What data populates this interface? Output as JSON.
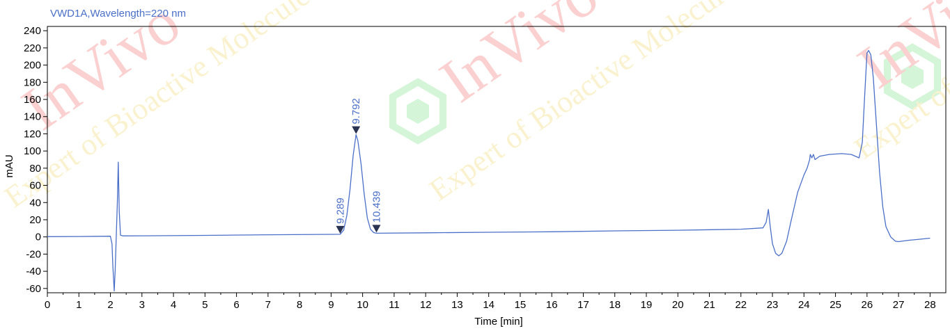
{
  "chart_data": {
    "type": "line",
    "title": "VWD1A,Wavelength=220 nm",
    "xlabel": "Time [min]",
    "ylabel": "mAU",
    "xlim": [
      0,
      28.5
    ],
    "ylim": [
      -65,
      245
    ],
    "x_ticks": [
      0,
      1,
      2,
      3,
      4,
      5,
      6,
      7,
      8,
      9,
      10,
      11,
      12,
      13,
      14,
      15,
      16,
      17,
      18,
      19,
      20,
      21,
      22,
      23,
      24,
      25,
      26,
      27,
      28
    ],
    "y_ticks": [
      -60,
      -40,
      -20,
      0,
      20,
      40,
      60,
      80,
      100,
      120,
      140,
      160,
      180,
      200,
      220,
      240
    ],
    "grid": false,
    "legend": "none",
    "series": [
      {
        "color": "#4a6fc8",
        "points": [
          [
            0,
            0.3
          ],
          [
            1,
            0.5
          ],
          [
            2.0,
            0.8
          ],
          [
            2.05,
            -8
          ],
          [
            2.08,
            -35
          ],
          [
            2.12,
            -63
          ],
          [
            2.15,
            -40
          ],
          [
            2.18,
            -5
          ],
          [
            2.22,
            40
          ],
          [
            2.25,
            87
          ],
          [
            2.28,
            30
          ],
          [
            2.32,
            2
          ],
          [
            2.4,
            1.2
          ],
          [
            3,
            1.3
          ],
          [
            5,
            1.8
          ],
          [
            7,
            2.5
          ],
          [
            9.0,
            3.0
          ],
          [
            9.289,
            3.1
          ],
          [
            9.4,
            8
          ],
          [
            9.5,
            25
          ],
          [
            9.6,
            55
          ],
          [
            9.7,
            95
          ],
          [
            9.792,
            119
          ],
          [
            9.85,
            112
          ],
          [
            9.95,
            85
          ],
          [
            10.05,
            50
          ],
          [
            10.15,
            22
          ],
          [
            10.25,
            9
          ],
          [
            10.35,
            5
          ],
          [
            10.439,
            4.3
          ],
          [
            12,
            4.8
          ],
          [
            14,
            5.4
          ],
          [
            16,
            6.0
          ],
          [
            18,
            7.0
          ],
          [
            20,
            7.8
          ],
          [
            22,
            9.0
          ],
          [
            22.7,
            10.5
          ],
          [
            22.8,
            17
          ],
          [
            22.87,
            32
          ],
          [
            22.93,
            12
          ],
          [
            23.0,
            -8
          ],
          [
            23.1,
            -19
          ],
          [
            23.2,
            -22
          ],
          [
            23.3,
            -19
          ],
          [
            23.45,
            -5
          ],
          [
            23.6,
            20
          ],
          [
            23.8,
            52
          ],
          [
            24.0,
            72
          ],
          [
            24.1,
            80
          ],
          [
            24.18,
            90
          ],
          [
            24.2,
            96
          ],
          [
            24.25,
            92
          ],
          [
            24.3,
            96
          ],
          [
            24.35,
            90
          ],
          [
            24.5,
            94
          ],
          [
            24.8,
            96
          ],
          [
            25.2,
            97
          ],
          [
            25.5,
            96
          ],
          [
            25.75,
            92
          ],
          [
            25.85,
            110
          ],
          [
            25.92,
            160
          ],
          [
            26.0,
            214
          ],
          [
            26.05,
            217
          ],
          [
            26.12,
            212
          ],
          [
            26.2,
            185
          ],
          [
            26.3,
            130
          ],
          [
            26.4,
            75
          ],
          [
            26.5,
            35
          ],
          [
            26.6,
            12
          ],
          [
            26.75,
            0
          ],
          [
            26.9,
            -5
          ],
          [
            27.0,
            -5.5
          ],
          [
            27.3,
            -4
          ],
          [
            27.6,
            -3
          ],
          [
            28.0,
            -1.5
          ]
        ]
      }
    ],
    "annotations": [
      {
        "label": "9.289",
        "x": 9.289,
        "y": 3.1
      },
      {
        "label": "9.792",
        "x": 9.792,
        "y": 119
      },
      {
        "label": "10.439",
        "x": 10.439,
        "y": 4.3
      }
    ]
  },
  "watermark": {
    "brand": "InVivo",
    "tagline": "Expert of Bioactive Molecules",
    "colors": {
      "red": "#e8312a",
      "yellow": "#e8c320",
      "green": "#3bcf4a"
    }
  },
  "style": {
    "line_color": "#4a6fc8",
    "axis_color": "#000000",
    "title_color": "#4a6fc8"
  }
}
